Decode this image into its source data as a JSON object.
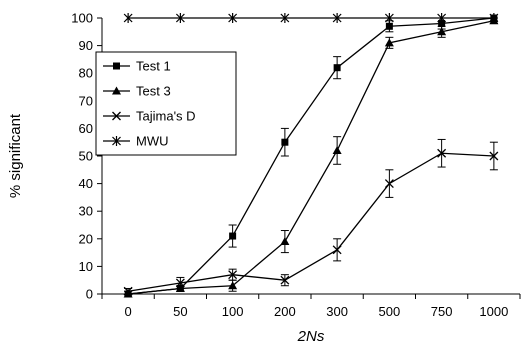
{
  "chart_data": {
    "type": "line",
    "xlabel": "2Ns",
    "ylabel": "% significant",
    "categories": [
      "0",
      "50",
      "100",
      "200",
      "300",
      "500",
      "750",
      "1000"
    ],
    "ylim": [
      0,
      100
    ],
    "yticks": [
      0,
      10,
      20,
      30,
      40,
      50,
      60,
      70,
      80,
      90,
      100
    ],
    "grid": false,
    "legend_position": "top-left",
    "series": [
      {
        "name": "Test 1",
        "marker": "square",
        "values": [
          0,
          2,
          21,
          55,
          82,
          97,
          98,
          100
        ],
        "errors": [
          1,
          1,
          4,
          5,
          4,
          2,
          2,
          1
        ]
      },
      {
        "name": "Test 3",
        "marker": "triangle",
        "values": [
          0,
          2,
          3,
          19,
          52,
          91,
          95,
          99
        ],
        "errors": [
          1,
          1,
          2,
          4,
          5,
          2,
          2,
          1
        ]
      },
      {
        "name": "Tajima's D",
        "marker": "x",
        "values": [
          1,
          4,
          7,
          5,
          16,
          40,
          51,
          50
        ],
        "errors": [
          1,
          2,
          2,
          2,
          4,
          5,
          5,
          5
        ]
      },
      {
        "name": "MWU",
        "marker": "star",
        "values": [
          100,
          100,
          100,
          100,
          100,
          100,
          100,
          100
        ],
        "errors": [
          0,
          0,
          0,
          0,
          0,
          0,
          0,
          0
        ]
      }
    ]
  }
}
